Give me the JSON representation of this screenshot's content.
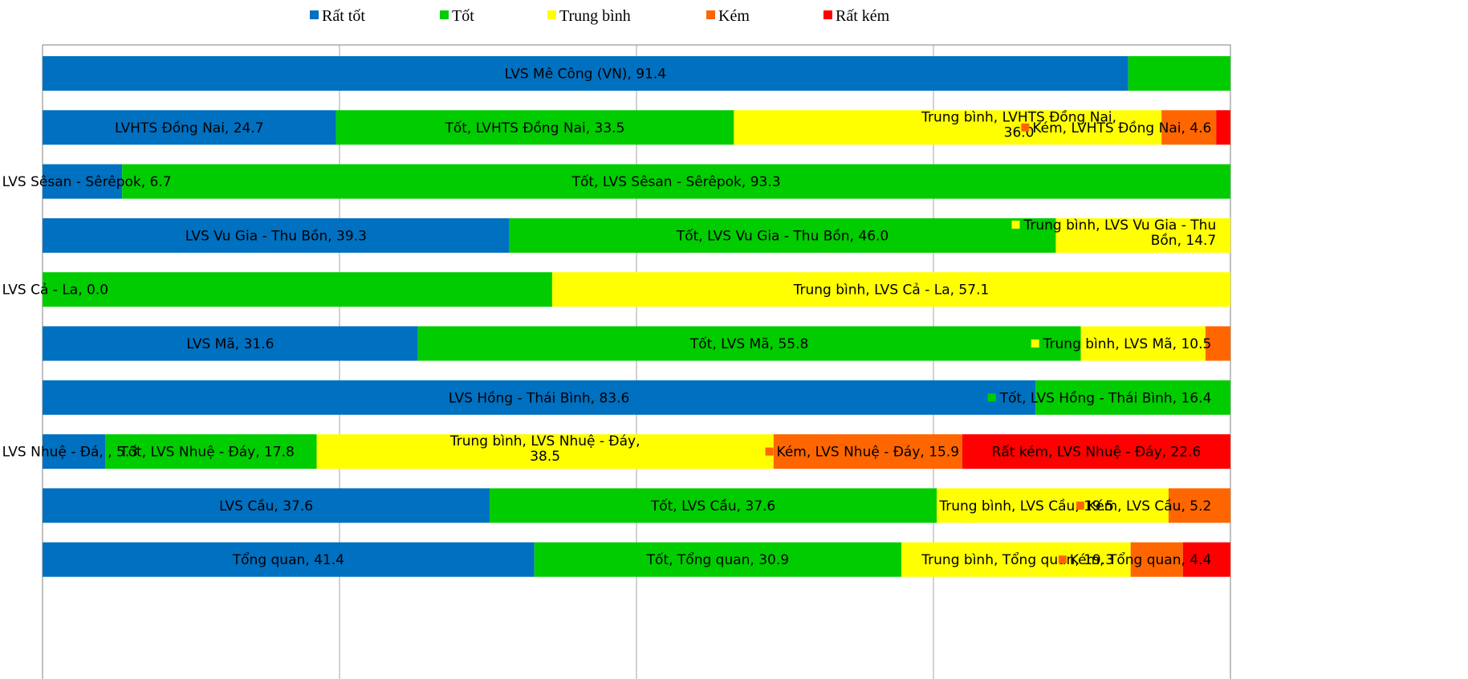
{
  "chart_data": {
    "type": "bar",
    "orientation": "horizontal",
    "stacked": "percent",
    "legend_position": "top",
    "grid": true,
    "xlim": [
      0,
      100
    ],
    "categories": [
      "LVS Mê Công (VN)",
      "LVHTS Đồng Nai",
      "LVS Sêsan - Sêrêpok",
      "LVS Vu Gia - Thu Bồn",
      "LVS Cả - La",
      "LVS Mã",
      "LVS Hồng - Thái Bình",
      "LVS Nhuệ - Đáy",
      "LVS Cầu",
      "Tổng quan"
    ],
    "series": [
      {
        "name": "Rất tốt",
        "color": "#0070C0",
        "values": [
          91.4,
          24.7,
          6.7,
          39.3,
          0.0,
          31.6,
          83.6,
          5.3,
          37.6,
          41.4
        ]
      },
      {
        "name": "Tốt",
        "color": "#00CC00",
        "values": [
          8.6,
          33.5,
          93.3,
          46.0,
          42.9,
          55.8,
          16.4,
          17.8,
          37.6,
          30.9
        ]
      },
      {
        "name": "Trung bình",
        "color": "#FFFF00",
        "values": [
          0,
          36.0,
          0,
          14.7,
          57.1,
          10.5,
          0,
          38.5,
          19.5,
          19.3
        ]
      },
      {
        "name": "Kém",
        "color": "#FF6600",
        "values": [
          0,
          4.6,
          0,
          0,
          0,
          2.1,
          0,
          15.9,
          5.2,
          4.4
        ]
      },
      {
        "name": "Rất kém",
        "color": "#FF0000",
        "values": [
          0,
          1.2,
          0,
          0,
          0,
          0,
          0,
          22.6,
          0,
          4.0
        ]
      }
    ],
    "data_labels": [
      {
        "row": 0,
        "series": 0,
        "text": "LVS Mê Công (VN), 91.4"
      },
      {
        "row": 1,
        "series": 0,
        "text": "LVHTS Đồng Nai, 24.7"
      },
      {
        "row": 1,
        "series": 1,
        "text": "Tốt, LVHTS Đồng Nai, 33.5"
      },
      {
        "row": 1,
        "series": 2,
        "lines": [
          "Trung bình, LVHTS Đồng Nai,",
          "36.0"
        ],
        "dx": 0.06
      },
      {
        "row": 1,
        "series": 3,
        "text": "Kém, LVHTS Đồng Nai, 4.6",
        "marker": true,
        "anchor": "end",
        "ax": 98.4
      },
      {
        "row": 2,
        "series": 0,
        "text": "LVS Sêsan - Sêrêpok, 6.7",
        "anchor": "start",
        "ax": -3.4
      },
      {
        "row": 2,
        "series": 1,
        "text": "Tốt, LVS Sêsan - Sêrêpok, 93.3"
      },
      {
        "row": 3,
        "series": 0,
        "text": "LVS Vu Gia - Thu Bồn, 39.3"
      },
      {
        "row": 3,
        "series": 1,
        "text": "Tốt, LVS Vu Gia - Thu Bồn, 46.0"
      },
      {
        "row": 3,
        "series": 2,
        "lines": [
          "Trung bình, LVS Vu Gia - Thu",
          "Bồn, 14.7"
        ],
        "marker": true,
        "anchor": "end",
        "ax": 98.8
      },
      {
        "row": 4,
        "series": 0,
        "text": "LVS Cả - La, 0.0",
        "anchor": "start",
        "ax": -3.4
      },
      {
        "row": 4,
        "series": 2,
        "text": "Trung bình, LVS Cả - La, 57.1"
      },
      {
        "row": 5,
        "series": 0,
        "text": "LVS Mã, 31.6"
      },
      {
        "row": 5,
        "series": 1,
        "text": "Tốt, LVS Mã, 55.8"
      },
      {
        "row": 5,
        "series": 2,
        "text": "Trung bình, LVS Mã, 10.5",
        "marker": true,
        "anchor": "end",
        "ax": 98.4
      },
      {
        "row": 6,
        "series": 0,
        "text": "LVS Hồng - Thái Bình, 83.6"
      },
      {
        "row": 6,
        "series": 1,
        "text": "Tốt, LVS Hồng - Thái Bình, 16.4",
        "marker": true,
        "anchor": "end",
        "ax": 98.4
      },
      {
        "row": 7,
        "series": 0,
        "text": "LVS Nhuệ - Đá, , 5.3",
        "anchor": "start",
        "ax": -3.4
      },
      {
        "row": 7,
        "series": 1,
        "text": "Tốt, LVS Nhuệ - Đáy, 17.8",
        "anchor": "start",
        "ax": 6.5
      },
      {
        "row": 7,
        "series": 2,
        "lines": [
          "Trung bình, LVS Nhuệ - Đáy,",
          "38.5"
        ]
      },
      {
        "row": 7,
        "series": 3,
        "text": "Kém, LVS Nhuệ - Đáy, 15.9",
        "marker": true
      },
      {
        "row": 7,
        "series": 4,
        "text": "Rất kém, LVS Nhuệ - Đáy, 22.6"
      },
      {
        "row": 8,
        "series": 0,
        "text": "LVS Cầu, 37.6"
      },
      {
        "row": 8,
        "series": 1,
        "text": "Tốt, LVS Cầu, 37.6"
      },
      {
        "row": 8,
        "series": 2,
        "text": "Trung bình, LVS Cầu, 19.5",
        "anchor": "end",
        "ax": 90.2
      },
      {
        "row": 8,
        "series": 3,
        "text": "Kém, LVS Cầu, 5.2",
        "marker": true,
        "anchor": "end",
        "ax": 98.4
      },
      {
        "row": 9,
        "series": 0,
        "text": "Tổng quan, 41.4"
      },
      {
        "row": 9,
        "series": 1,
        "text": "Tốt, Tổng quan, 30.9"
      },
      {
        "row": 9,
        "series": 2,
        "text": "Trung bình, Tổng quan, 19.3",
        "anchor": "end",
        "ax": 90.2
      },
      {
        "row": 9,
        "series": 3,
        "text": "Kém, Tổng quan, 4.4",
        "marker": true,
        "anchor": "end",
        "ax": 98.4
      }
    ]
  }
}
